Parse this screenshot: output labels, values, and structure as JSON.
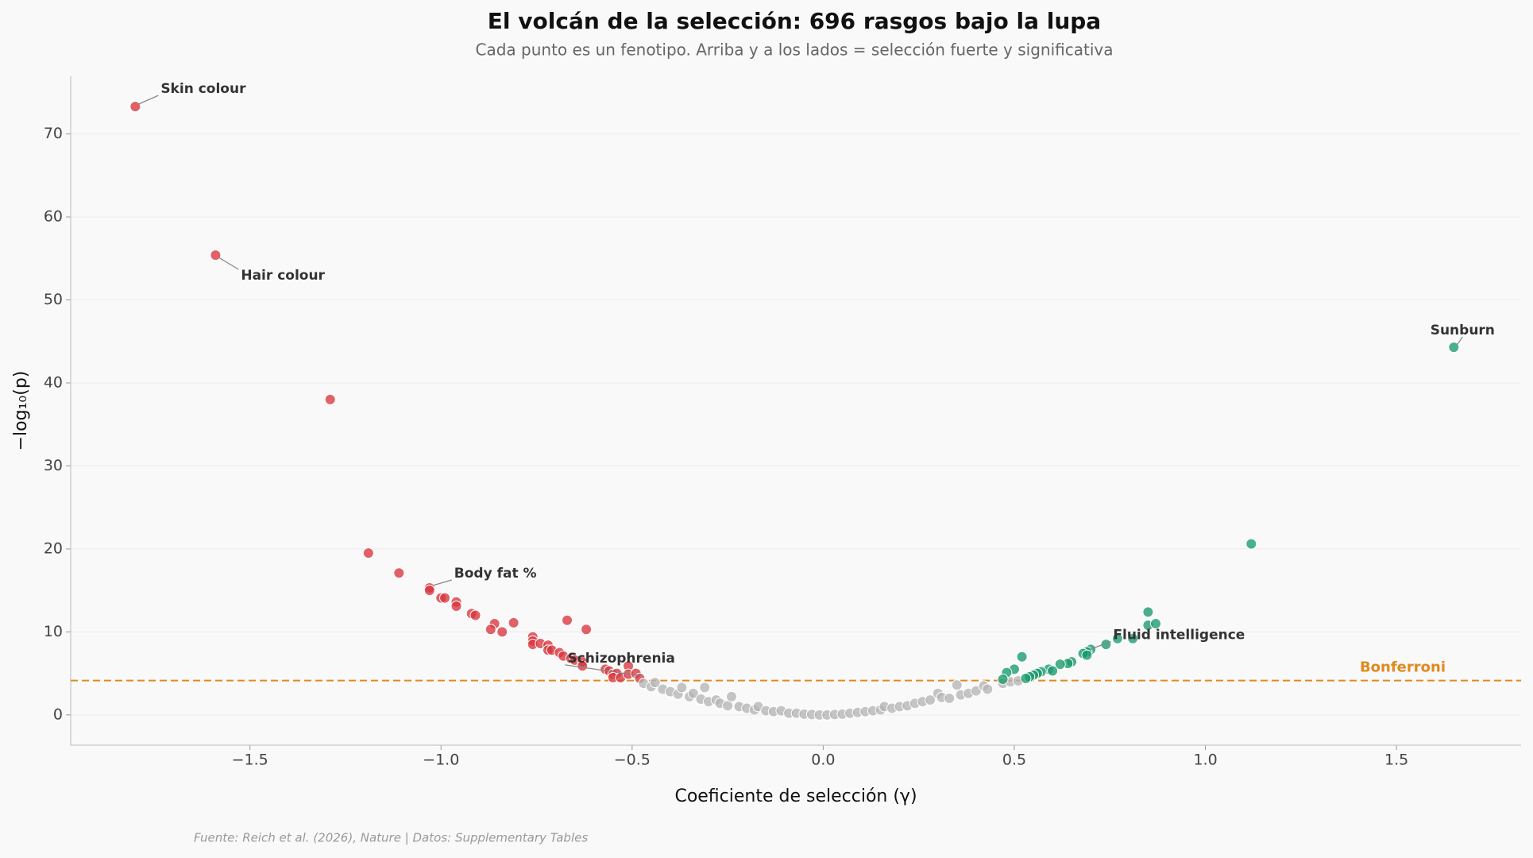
{
  "chart_data": {
    "type": "scatter",
    "title": "El volcán de la selección: 696 rasgos bajo la lupa",
    "subtitle": "Cada punto es un fenotipo. Arriba y a los lados = selección fuerte y significativa",
    "x_label": "Coeficiente de selección (γ)",
    "y_label": "−log₁₀(p)",
    "source": "Fuente: Reich et al. (2026), Nature | Datos: Supplementary Tables",
    "xlim": [
      -1.969,
      1.826
    ],
    "ylim": [
      -3.65,
      76.95
    ],
    "xticks": [
      {
        "value": -1.5,
        "label": "−1.5"
      },
      {
        "value": -1.0,
        "label": "−1.0"
      },
      {
        "value": -0.5,
        "label": "−0.5"
      },
      {
        "value": 0.0,
        "label": "0.0"
      },
      {
        "value": 0.5,
        "label": "0.5"
      },
      {
        "value": 1.0,
        "label": "1.0"
      },
      {
        "value": 1.5,
        "label": "1.5"
      }
    ],
    "yticks": [
      0,
      10,
      20,
      30,
      40,
      50,
      60,
      70
    ],
    "grid": true,
    "threshold": {
      "value": 4.14,
      "label": "Bonferroni",
      "color": "#e08a1e"
    },
    "series": [
      {
        "color": "#d9363e",
        "x": [
          -1.8,
          -1.59,
          -1.29,
          -1.19,
          -1.11,
          -1.03,
          -1.03,
          -1.0,
          -0.99,
          -0.96,
          -0.96,
          -0.92,
          -0.91,
          -0.86,
          -0.81,
          -0.87,
          -0.84,
          -0.76,
          -0.76,
          -0.76,
          -0.74,
          -0.72,
          -0.72,
          -0.71,
          -0.69,
          -0.68,
          -0.67,
          -0.62,
          -0.66,
          -0.65,
          -0.63,
          -0.63,
          -0.57,
          -0.56,
          -0.55,
          -0.54,
          -0.55,
          -0.53,
          -0.51,
          -0.51,
          -0.49,
          -0.48
        ],
        "values": [
          73.3,
          55.4,
          38.0,
          19.5,
          17.1,
          15.3,
          15.0,
          14.1,
          14.1,
          13.6,
          13.1,
          12.2,
          12.0,
          11.0,
          11.1,
          10.3,
          10.0,
          9.4,
          8.9,
          8.5,
          8.6,
          8.4,
          7.8,
          7.8,
          7.5,
          7.1,
          11.4,
          10.3,
          6.8,
          6.6,
          6.4,
          5.9,
          5.5,
          5.3,
          4.9,
          5.0,
          4.5,
          4.5,
          5.9,
          4.9,
          5.0,
          4.4
        ]
      },
      {
        "color": "#b5b5b5",
        "x": [
          -0.47,
          -0.45,
          -0.44,
          -0.42,
          -0.4,
          -0.38,
          -0.37,
          -0.35,
          -0.34,
          -0.32,
          -0.31,
          -0.3,
          -0.28,
          -0.27,
          -0.25,
          -0.24,
          -0.22,
          -0.2,
          -0.18,
          -0.17,
          -0.15,
          -0.13,
          -0.11,
          -0.09,
          -0.07,
          -0.05,
          -0.03,
          -0.01,
          0.01,
          0.03,
          0.05,
          0.07,
          0.09,
          0.11,
          0.13,
          0.15,
          0.16,
          0.18,
          0.2,
          0.22,
          0.24,
          0.26,
          0.28,
          0.3,
          0.31,
          0.33,
          0.35,
          0.36,
          0.38,
          0.4,
          0.42,
          0.43,
          0.47,
          0.49,
          0.51
        ],
        "values": [
          3.8,
          3.4,
          3.9,
          3.1,
          2.8,
          2.5,
          3.3,
          2.2,
          2.6,
          1.9,
          3.3,
          1.6,
          1.8,
          1.4,
          1.1,
          2.2,
          1.0,
          0.8,
          0.6,
          1.0,
          0.5,
          0.4,
          0.5,
          0.2,
          0.2,
          0.1,
          0.05,
          0.0,
          0.0,
          0.05,
          0.1,
          0.2,
          0.3,
          0.4,
          0.5,
          0.6,
          1.0,
          0.8,
          1.0,
          1.1,
          1.4,
          1.6,
          1.8,
          2.6,
          2.1,
          2.0,
          3.6,
          2.4,
          2.6,
          2.9,
          3.5,
          3.1,
          3.8,
          4.0,
          4.1
        ]
      },
      {
        "color": "#1a9a6c",
        "x": [
          1.65,
          1.12,
          0.85,
          0.85,
          0.87,
          0.81,
          0.77,
          0.74,
          0.7,
          0.69,
          0.68,
          0.69,
          0.65,
          0.64,
          0.62,
          0.59,
          0.6,
          0.57,
          0.56,
          0.55,
          0.54,
          0.52,
          0.5,
          0.48,
          0.47,
          0.53
        ],
        "values": [
          44.3,
          20.6,
          12.4,
          10.8,
          11.0,
          9.2,
          9.2,
          8.5,
          7.9,
          7.6,
          7.4,
          7.2,
          6.4,
          6.2,
          6.1,
          5.5,
          5.3,
          5.2,
          5.0,
          4.8,
          4.6,
          7.0,
          5.5,
          5.1,
          4.3,
          4.4
        ]
      }
    ],
    "annotations": [
      {
        "text": "Skin colour",
        "x": -1.8,
        "y": 73.3
      },
      {
        "text": "Hair colour",
        "x": -1.59,
        "y": 55.4
      },
      {
        "text": "Body fat %",
        "x": -1.03,
        "y": 15.3
      },
      {
        "text": "Schizophrenia",
        "x": -0.48,
        "y": 4.4
      },
      {
        "text": "Fluid intelligence",
        "x": 0.69,
        "y": 7.6
      },
      {
        "text": "Sunburn",
        "x": 1.65,
        "y": 44.3
      }
    ]
  }
}
